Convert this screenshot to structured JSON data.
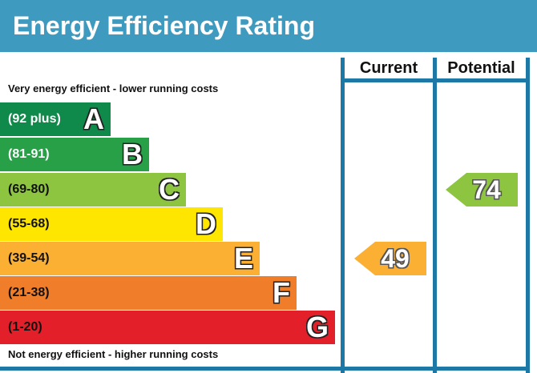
{
  "title": "Energy Efficiency Rating",
  "columns": {
    "current": "Current",
    "potential": "Potential"
  },
  "top_note": "Very energy efficient - lower running costs",
  "bottom_note": "Not energy efficient - higher running costs",
  "bands": [
    {
      "range": "(92 plus)",
      "letter": "A",
      "color": "#0f8a4a",
      "text_color": "#ffffff"
    },
    {
      "range": "(81-91)",
      "letter": "B",
      "color": "#27a048",
      "text_color": "#ffffff"
    },
    {
      "range": "(69-80)",
      "letter": "C",
      "color": "#8dc540",
      "text_color": "#111111"
    },
    {
      "range": "(55-68)",
      "letter": "D",
      "color": "#ffe600",
      "text_color": "#111111"
    },
    {
      "range": "(39-54)",
      "letter": "E",
      "color": "#fbb033",
      "text_color": "#111111"
    },
    {
      "range": "(21-38)",
      "letter": "F",
      "color": "#ef7d29",
      "text_color": "#111111"
    },
    {
      "range": "(1-20)",
      "letter": "G",
      "color": "#e31f2a",
      "text_color": "#111111"
    }
  ],
  "current": {
    "value": "49",
    "band": "E",
    "color": "#fbb033"
  },
  "potential": {
    "value": "74",
    "band": "C",
    "color": "#8dc540"
  }
}
